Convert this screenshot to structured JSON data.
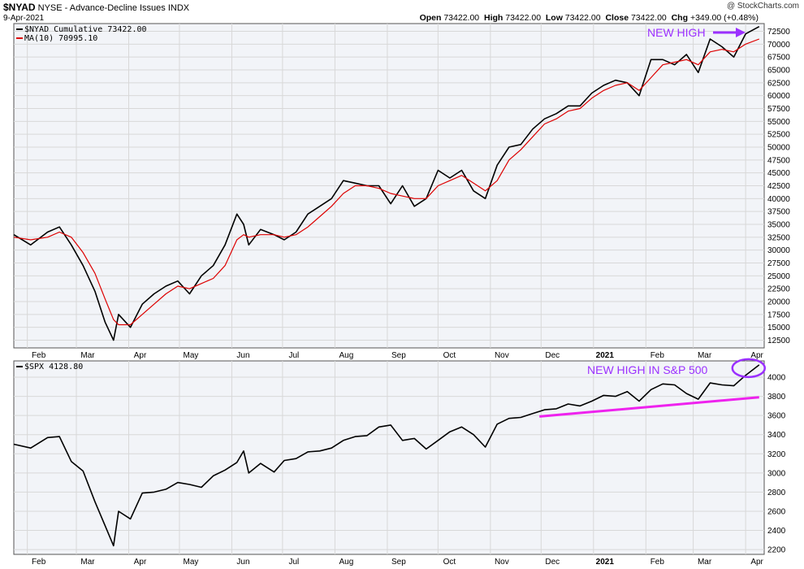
{
  "header": {
    "symbol": "$NYAD",
    "name": "NYSE - Advance-Decline Issues",
    "exchange": "INDX",
    "date": "9-Apr-2021",
    "open_label": "Open",
    "open": "73422.00",
    "high_label": "High",
    "high": "73422.00",
    "low_label": "Low",
    "low": "73422.00",
    "close_label": "Close",
    "close": "73422.00",
    "chg_label": "Chg",
    "chg": "+349.00 (+0.48%)",
    "watermark": "@ StockCharts.com"
  },
  "colors": {
    "price_line": "#000000",
    "ma_line": "#dd0000",
    "annotation": "#9b30ff",
    "trendline": "#ee22ee",
    "grid": "#d8d8d8",
    "panel_bg": "#f2f4f8"
  },
  "chart_data": [
    {
      "type": "line",
      "title": "$NYAD Cumulative",
      "legend": [
        {
          "name": "$NYAD Cumulative 73422.00",
          "color": "#000000"
        },
        {
          "name": "MA(10) 70995.10",
          "color": "#dd0000"
        }
      ],
      "x": [
        "2020-01-24",
        "2020-02-03",
        "2020-02-13",
        "2020-02-20",
        "2020-02-27",
        "2020-03-05",
        "2020-03-12",
        "2020-03-18",
        "2020-03-23",
        "2020-03-26",
        "2020-04-02",
        "2020-04-09",
        "2020-04-16",
        "2020-04-23",
        "2020-04-30",
        "2020-05-07",
        "2020-05-14",
        "2020-05-21",
        "2020-05-28",
        "2020-06-04",
        "2020-06-08",
        "2020-06-11",
        "2020-06-18",
        "2020-06-26",
        "2020-07-02",
        "2020-07-09",
        "2020-07-16",
        "2020-07-23",
        "2020-07-30",
        "2020-08-06",
        "2020-08-13",
        "2020-08-20",
        "2020-08-27",
        "2020-09-03",
        "2020-09-10",
        "2020-09-17",
        "2020-09-24",
        "2020-10-01",
        "2020-10-08",
        "2020-10-15",
        "2020-10-22",
        "2020-10-29",
        "2020-11-05",
        "2020-11-12",
        "2020-11-19",
        "2020-11-26",
        "2020-12-03",
        "2020-12-10",
        "2020-12-17",
        "2020-12-24",
        "2020-12-31",
        "2021-01-07",
        "2021-01-14",
        "2021-01-21",
        "2021-01-28",
        "2021-02-04",
        "2021-02-11",
        "2021-02-18",
        "2021-02-25",
        "2021-03-04",
        "2021-03-11",
        "2021-03-18",
        "2021-03-25",
        "2021-04-01",
        "2021-04-09"
      ],
      "series": [
        {
          "name": "$NYAD Cumulative",
          "values": [
            33000,
            31000,
            33500,
            34500,
            31000,
            27000,
            22000,
            16000,
            12500,
            17500,
            15000,
            19500,
            21500,
            23000,
            24000,
            21500,
            25000,
            27000,
            31000,
            37000,
            35000,
            31000,
            34000,
            33000,
            32000,
            33500,
            37000,
            38500,
            40000,
            43500,
            43000,
            42500,
            42500,
            39000,
            42500,
            38500,
            40000,
            45500,
            44000,
            45500,
            41500,
            40000,
            46500,
            50000,
            50500,
            53500,
            55500,
            56500,
            58000,
            58000,
            60500,
            62000,
            63000,
            62500,
            60000,
            67000,
            67000,
            66000,
            68000,
            64500,
            71000,
            69500,
            67500,
            72000,
            73422
          ]
        },
        {
          "name": "MA(10)",
          "values": [
            32500,
            32000,
            32500,
            33500,
            32500,
            29500,
            25500,
            20500,
            16500,
            15500,
            15500,
            17500,
            19500,
            21500,
            23000,
            22500,
            23500,
            24500,
            27000,
            32000,
            33000,
            32500,
            33000,
            33000,
            32500,
            33000,
            34500,
            36500,
            38500,
            41000,
            42500,
            42500,
            42000,
            41000,
            40500,
            40000,
            40000,
            42500,
            43500,
            44500,
            43000,
            41500,
            43500,
            47500,
            49500,
            52000,
            54500,
            55500,
            57000,
            57500,
            59500,
            61000,
            62000,
            62500,
            61000,
            63500,
            66000,
            66500,
            67000,
            66000,
            68500,
            69000,
            68500,
            70000,
            70995
          ]
        }
      ],
      "y_ticks": [
        "72500",
        "70000",
        "67500",
        "65000",
        "62500",
        "60000",
        "57500",
        "55000",
        "52500",
        "50000",
        "47500",
        "45000",
        "42500",
        "40000",
        "37500",
        "35000",
        "32500",
        "30000",
        "27500",
        "25000",
        "22500",
        "20000",
        "17500",
        "15000",
        "12500"
      ],
      "ylim": [
        11000,
        74000
      ],
      "x_month_labels": [
        "Feb",
        "Mar",
        "Apr",
        "May",
        "Jun",
        "Jul",
        "Aug",
        "Sep",
        "Oct",
        "Nov",
        "Dec",
        "2021",
        "Feb",
        "Mar",
        "Apr"
      ],
      "annotation": "NEW HIGH",
      "grid": true
    },
    {
      "type": "line",
      "title": "$SPX",
      "legend": [
        {
          "name": "$SPX 4128.80",
          "color": "#000000"
        }
      ],
      "x": [
        "2020-01-24",
        "2020-02-03",
        "2020-02-13",
        "2020-02-20",
        "2020-02-27",
        "2020-03-05",
        "2020-03-12",
        "2020-03-18",
        "2020-03-23",
        "2020-03-26",
        "2020-04-02",
        "2020-04-09",
        "2020-04-16",
        "2020-04-23",
        "2020-04-30",
        "2020-05-07",
        "2020-05-14",
        "2020-05-21",
        "2020-05-28",
        "2020-06-04",
        "2020-06-08",
        "2020-06-11",
        "2020-06-18",
        "2020-06-26",
        "2020-07-02",
        "2020-07-09",
        "2020-07-16",
        "2020-07-23",
        "2020-07-30",
        "2020-08-06",
        "2020-08-13",
        "2020-08-20",
        "2020-08-27",
        "2020-09-03",
        "2020-09-10",
        "2020-09-17",
        "2020-09-24",
        "2020-10-01",
        "2020-10-08",
        "2020-10-15",
        "2020-10-22",
        "2020-10-29",
        "2020-11-05",
        "2020-11-12",
        "2020-11-19",
        "2020-11-26",
        "2020-12-03",
        "2020-12-10",
        "2020-12-17",
        "2020-12-24",
        "2020-12-31",
        "2021-01-07",
        "2021-01-14",
        "2021-01-21",
        "2021-01-28",
        "2021-02-04",
        "2021-02-11",
        "2021-02-18",
        "2021-02-25",
        "2021-03-04",
        "2021-03-11",
        "2021-03-18",
        "2021-03-25",
        "2021-04-01",
        "2021-04-09"
      ],
      "series": [
        {
          "name": "$SPX",
          "values": [
            3300,
            3260,
            3370,
            3380,
            3120,
            3020,
            2700,
            2450,
            2240,
            2600,
            2520,
            2790,
            2800,
            2830,
            2900,
            2880,
            2850,
            2970,
            3030,
            3110,
            3230,
            3000,
            3100,
            3010,
            3130,
            3150,
            3220,
            3230,
            3260,
            3340,
            3380,
            3390,
            3480,
            3500,
            3340,
            3360,
            3250,
            3340,
            3430,
            3480,
            3400,
            3270,
            3510,
            3570,
            3580,
            3620,
            3660,
            3670,
            3720,
            3700,
            3750,
            3810,
            3800,
            3850,
            3750,
            3870,
            3930,
            3920,
            3830,
            3770,
            3940,
            3920,
            3910,
            4020,
            4128.8
          ]
        }
      ],
      "y_ticks": [
        "4000",
        "3800",
        "3600",
        "3400",
        "3200",
        "3000",
        "2800",
        "2600",
        "2400",
        "2200"
      ],
      "ylim": [
        2150,
        4170
      ],
      "x_month_labels": [
        "Feb",
        "Mar",
        "Apr",
        "May",
        "Jun",
        "Jul",
        "Aug",
        "Sep",
        "Oct",
        "Nov",
        "Dec",
        "2021",
        "Feb",
        "Mar",
        "Apr"
      ],
      "annotation": "NEW HIGH IN S&P 500",
      "trendline": {
        "start": [
          "2020-11-30",
          3590
        ],
        "end": [
          "2021-04-09",
          3790
        ]
      },
      "grid": true
    }
  ]
}
